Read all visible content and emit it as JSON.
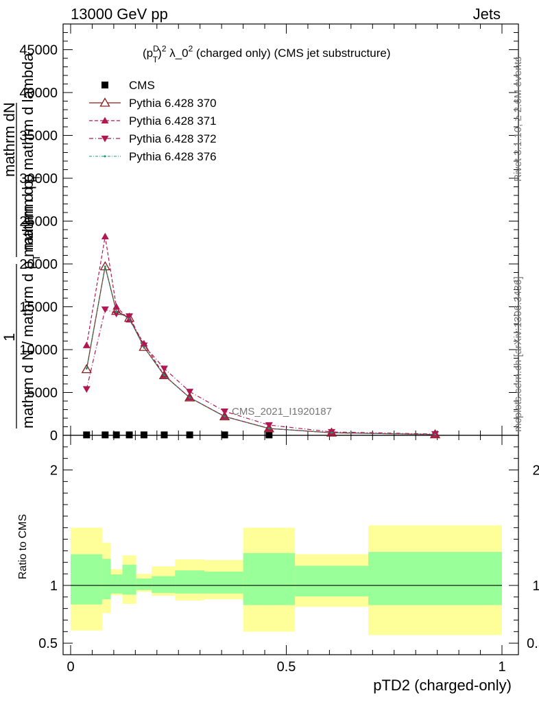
{
  "header": {
    "left": "13000 GeV pp",
    "right": "Jets"
  },
  "plot_title": {
    "p": "(p",
    "sup_d": "D",
    "sub_t": "T",
    "close": ")",
    "sup_2a": "2",
    "lambda": " λ_0",
    "sup_2b": "2",
    "rest": " (charged only) (CMS jet substructure)"
  },
  "side_labels": {
    "rivet": "Rivet 3.1.10, ≥ 2.6M events",
    "mcplots": "mcplots.cern.ch [arXiv:1306.3436]"
  },
  "analysis_label": "CMS_2021_I1920187",
  "y_axis": {
    "line1_top": "mathrm dN",
    "line1_bottom_pre": "mathrm d p",
    "line1_bottom_sub": "T",
    "line1_bottom_post": " mathrm d lambda",
    "one": "1",
    "line2_pre": "mathrm d N / mathrm d p",
    "line2_sub": "T",
    "line2_post": " mathrm d p"
  },
  "ratio_ylabel": "Ratio to CMS",
  "x_axis_label": "pTD2 (charged-only)",
  "chart_data": {
    "type": "line",
    "xlabel": "pTD2 (charged-only)",
    "xlim": [
      0,
      1
    ],
    "main_ylim": [
      0,
      48000
    ],
    "main_yticks": [
      0,
      5000,
      10000,
      15000,
      20000,
      25000,
      30000,
      35000,
      40000,
      45000
    ],
    "main_yticklabels": [
      "0",
      "5000",
      "10000",
      "15000",
      "20000",
      "25000",
      "30000",
      "35000",
      "40000",
      "45000"
    ],
    "ratio_ylim": [
      0.4,
      2.3
    ],
    "ratio_yticks": [
      0.5,
      1,
      2
    ],
    "ratio_yticklabels": [
      "0.5",
      "1",
      "2"
    ],
    "xticks": [
      0,
      0.5,
      1
    ],
    "xticklabels": [
      "0",
      "0.5",
      "1"
    ],
    "legend": [
      "CMS",
      "Pythia 6.428 370",
      "Pythia 6.428 371",
      "Pythia 6.428 372",
      "Pythia 6.428 376"
    ],
    "series": [
      {
        "name": "CMS",
        "style": "square",
        "color": "#000000",
        "x": [
          0.037,
          0.08,
          0.106,
          0.136,
          0.17,
          0.217,
          0.276,
          0.357,
          0.46
        ],
        "y": [
          50,
          50,
          50,
          50,
          50,
          50,
          50,
          50,
          50
        ]
      },
      {
        "name": "Pythia 6.428 370",
        "style": "solid-open-triangle",
        "color": "#8b1a1a",
        "x": [
          0.037,
          0.08,
          0.106,
          0.136,
          0.17,
          0.217,
          0.276,
          0.357,
          0.46,
          0.605,
          0.845
        ],
        "y": [
          7700,
          19700,
          14500,
          13700,
          10300,
          7000,
          4400,
          2200,
          800,
          300,
          100
        ]
      },
      {
        "name": "Pythia 6.428 371",
        "style": "dashed-filled-triangle-up",
        "color": "#b01650",
        "x": [
          0.037,
          0.08,
          0.106,
          0.136,
          0.17,
          0.217,
          0.276,
          0.357,
          0.46,
          0.605,
          0.845
        ],
        "y": [
          10500,
          23200,
          15000,
          13500,
          10700,
          7000,
          4400,
          2200,
          800,
          300,
          100
        ]
      },
      {
        "name": "Pythia 6.428 372",
        "style": "dashdot-filled-triangle-down",
        "color": "#b01650",
        "x": [
          0.037,
          0.08,
          0.106,
          0.136,
          0.17,
          0.217,
          0.276,
          0.357,
          0.46,
          0.605,
          0.845
        ],
        "y": [
          5400,
          14700,
          14200,
          13900,
          10500,
          7800,
          5100,
          2800,
          1200,
          400,
          150
        ]
      },
      {
        "name": "Pythia 6.428 376",
        "style": "dashdot-small",
        "color": "#1a9a6a",
        "x": [
          0.037,
          0.08,
          0.106,
          0.136,
          0.17,
          0.217,
          0.276,
          0.357,
          0.46,
          0.605,
          0.845
        ],
        "y": [
          7800,
          19700,
          14400,
          13600,
          10300,
          7000,
          4400,
          2200,
          800,
          300,
          100
        ]
      }
    ],
    "ratio_bands": [
      {
        "x0": 0.0,
        "x1": 0.073,
        "inner_lo": 0.835,
        "inner_hi": 1.27,
        "outer_lo": 0.61,
        "outer_hi": 1.5
      },
      {
        "x0": 0.073,
        "x1": 0.093,
        "inner_lo": 0.88,
        "inner_hi": 1.23,
        "outer_lo": 0.76,
        "outer_hi": 1.37
      },
      {
        "x0": 0.093,
        "x1": 0.12,
        "inner_lo": 0.93,
        "inner_hi": 1.095,
        "outer_lo": 0.915,
        "outer_hi": 1.14
      },
      {
        "x0": 0.12,
        "x1": 0.152,
        "inner_lo": 0.92,
        "inner_hi": 1.18,
        "outer_lo": 0.84,
        "outer_hi": 1.26
      },
      {
        "x0": 0.152,
        "x1": 0.188,
        "inner_lo": 0.96,
        "inner_hi": 1.06,
        "outer_lo": 0.945,
        "outer_hi": 1.1
      },
      {
        "x0": 0.188,
        "x1": 0.242,
        "inner_lo": 0.935,
        "inner_hi": 1.08,
        "outer_lo": 0.91,
        "outer_hi": 1.165
      },
      {
        "x0": 0.242,
        "x1": 0.31,
        "inner_lo": 0.93,
        "inner_hi": 1.13,
        "outer_lo": 0.87,
        "outer_hi": 1.225
      },
      {
        "x0": 0.31,
        "x1": 0.4,
        "inner_lo": 0.93,
        "inner_hi": 1.12,
        "outer_lo": 0.88,
        "outer_hi": 1.22
      },
      {
        "x0": 0.4,
        "x1": 0.52,
        "inner_lo": 0.83,
        "inner_hi": 1.28,
        "outer_lo": 0.6,
        "outer_hi": 1.5
      },
      {
        "x0": 0.52,
        "x1": 0.69,
        "inner_lo": 0.905,
        "inner_hi": 1.17,
        "outer_lo": 0.815,
        "outer_hi": 1.27
      },
      {
        "x0": 0.69,
        "x1": 1.0,
        "inner_lo": 0.83,
        "inner_hi": 1.29,
        "outer_lo": 0.57,
        "outer_hi": 1.52
      }
    ],
    "band_colors": {
      "inner": "#99ff99",
      "outer": "#ffff99"
    }
  }
}
